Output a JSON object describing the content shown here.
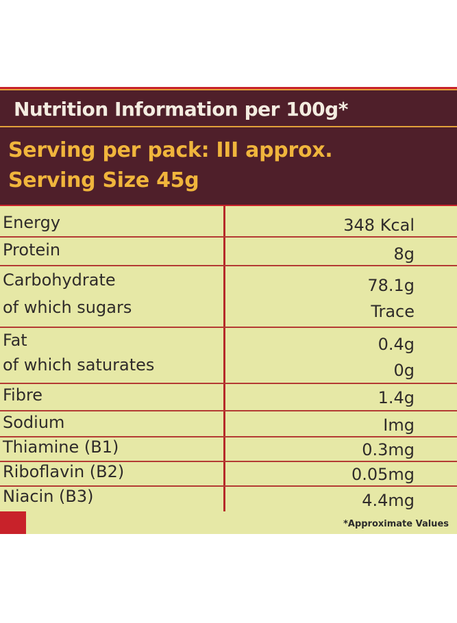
{
  "header": {
    "title": "Nutrition Information per 100g*",
    "serving_per_pack": "Serving per pack: III approx.",
    "serving_size": "Serving Size 45g"
  },
  "rows": [
    {
      "name": "Energy",
      "value": "348 Kcal"
    },
    {
      "name": "Protein",
      "value": "8g"
    },
    {
      "name": "Carbohydrate",
      "value": "78.1g",
      "sub_name": "of which sugars",
      "sub_value": "Trace"
    },
    {
      "name": "Fat",
      "value": "0.4g",
      "sub_name": "of which saturates",
      "sub_value": "0g"
    },
    {
      "name": "Fibre",
      "value": "1.4g"
    },
    {
      "name": "Sodium",
      "value": "Img"
    },
    {
      "name": "Thiamine (B1)",
      "value": "0.3mg"
    },
    {
      "name": "Riboflavin (B2)",
      "value": "0.05mg"
    },
    {
      "name": "Niacin (B3)",
      "value": "4.4mg"
    }
  ],
  "footnote": "*Approximate Values",
  "colors": {
    "header_bg": "#4f1f2a",
    "serving_text": "#f0b53c",
    "table_bg": "#e6e8a6",
    "rule": "#b33a33",
    "frame": "#c8222a"
  }
}
